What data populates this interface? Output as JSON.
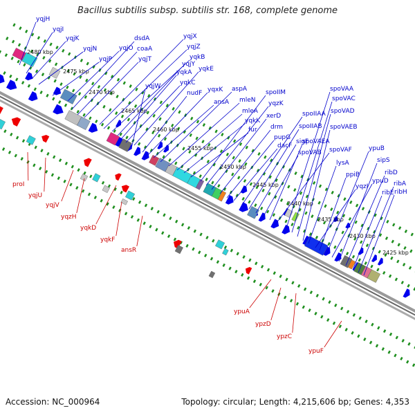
{
  "title": "Bacillus subtilis subsp. subtilis str. 168, complete genome",
  "footer": {
    "accession": "Accession: NC_000964",
    "summary": "Topology: circular; Length: 4,215,606 bp; Genes: 4,353"
  },
  "colors": {
    "forward_label": "#0000cc",
    "reverse_label": "#cc0000",
    "forward_feature": "#0000ee",
    "reverse_feature": "#ee0000",
    "tick_green": "#1f8f1f",
    "backbone": "#888888"
  },
  "kbp_markers": [
    "2480 kbp",
    "2475 kbp",
    "2470 kbp",
    "2465 kbp",
    "2460 kbp",
    "2455 kbp",
    "2450 kbp",
    "2445 kbp",
    "2440 kbp",
    "2435 kbp",
    "2430 kbp",
    "2425 kbp"
  ],
  "forward_genes": [
    "yqjH",
    "yqjI",
    "yqjK",
    "yqjN",
    "yqjO",
    "yqjP",
    "dsdA",
    "coaA",
    "yqjT",
    "yqjX",
    "yqjZ",
    "yqkB",
    "yqjY",
    "yqkA",
    "yqkC",
    "yqkE",
    "yqjW",
    "nudF",
    "yqxK",
    "ansA",
    "aspA",
    "mleN",
    "mleA",
    "yqkK",
    "fur",
    "spoIIM",
    "yqzK",
    "xerD",
    "drm",
    "pupG",
    "dacF",
    "spoIIAA",
    "spoIIAB",
    "sigF",
    "spoVAB",
    "spoVAEA",
    "spoVAF",
    "spoVAA",
    "spoVAC",
    "spoVAD",
    "spoVAEB",
    "lysA",
    "yqzI",
    "ppiB",
    "ypuB",
    "ypuD",
    "sipS",
    "ribD",
    "ribE",
    "ribA",
    "ribH"
  ],
  "reverse_genes": [
    "proI",
    "yqjU",
    "yqjV",
    "yqzH",
    "yqkD",
    "yqkF",
    "ansR",
    "ypuA",
    "ypzD",
    "ypzC",
    "ypuF"
  ]
}
